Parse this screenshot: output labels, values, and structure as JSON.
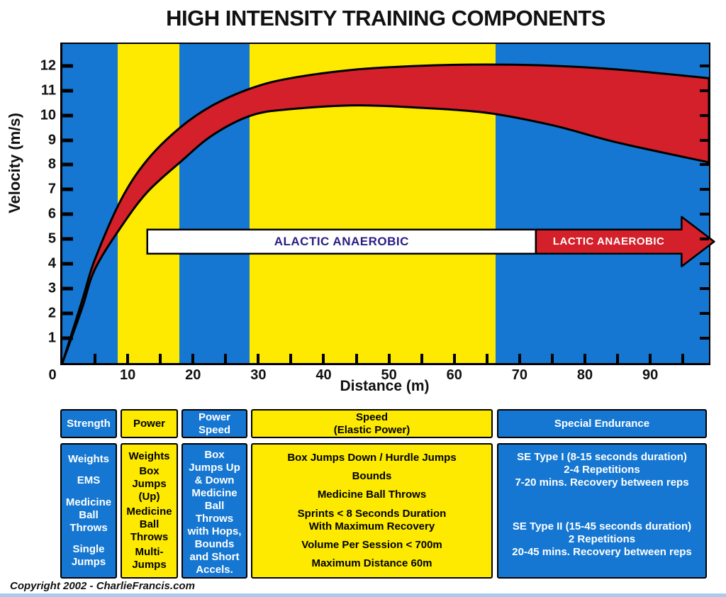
{
  "title": "HIGH INTENSITY TRAINING COMPONENTS",
  "footer": {
    "copyright": "Copyright 2002 - CharlieFrancis.com"
  },
  "colors": {
    "blue": "#1577d2",
    "yellow": "#fdea00",
    "red": "#d3202a",
    "navy_text": "#2c1c85",
    "white": "#ffffff",
    "black": "#000000",
    "footer_strip": "#a9cbec"
  },
  "chart_data": {
    "type": "area",
    "title": "HIGH INTENSITY TRAINING COMPONENTS",
    "xlabel": "Distance (m)",
    "ylabel": "Velocity (m/s)",
    "xlim": [
      0,
      99
    ],
    "ylim": [
      0,
      12.88
    ],
    "grid": false,
    "x_ticks_labeled": [
      0,
      10,
      20,
      30,
      40,
      50,
      60,
      70,
      80,
      90
    ],
    "x_ticks_minor_every": 5,
    "y_ticks": [
      1,
      2,
      3,
      4,
      5,
      6,
      7,
      8,
      9,
      10,
      11,
      12
    ],
    "zones": [
      {
        "name": "strength",
        "from": 0,
        "to": 8.5,
        "color": "blue"
      },
      {
        "name": "power",
        "from": 8.5,
        "to": 17.9,
        "color": "yellow"
      },
      {
        "name": "power-speed",
        "from": 17.9,
        "to": 28.7,
        "color": "blue"
      },
      {
        "name": "speed-elastic-power",
        "from": 28.7,
        "to": 66.3,
        "color": "yellow"
      },
      {
        "name": "special-endurance",
        "from": 66.3,
        "to": 99,
        "color": "blue"
      }
    ],
    "band": {
      "name": "velocity-envelope",
      "color": "red",
      "upper": [
        [
          0,
          0
        ],
        [
          3,
          2.5
        ],
        [
          5,
          4.2
        ],
        [
          9,
          6.6
        ],
        [
          13,
          8.2
        ],
        [
          18,
          9.5
        ],
        [
          23,
          10.4
        ],
        [
          29,
          11.1
        ],
        [
          35,
          11.5
        ],
        [
          45,
          11.85
        ],
        [
          55,
          12.0
        ],
        [
          65,
          12.05
        ],
        [
          75,
          12.0
        ],
        [
          85,
          11.85
        ],
        [
          99,
          11.5
        ]
      ],
      "lower": [
        [
          0,
          0
        ],
        [
          3,
          2.2
        ],
        [
          5,
          3.8
        ],
        [
          9,
          5.5
        ],
        [
          13,
          6.9
        ],
        [
          18,
          8.1
        ],
        [
          23,
          9.2
        ],
        [
          29,
          10.0
        ],
        [
          35,
          10.25
        ],
        [
          45,
          10.4
        ],
        [
          55,
          10.3
        ],
        [
          65,
          10.1
        ],
        [
          75,
          9.6
        ],
        [
          85,
          8.9
        ],
        [
          99,
          8.1
        ]
      ]
    },
    "annotations": [
      {
        "label": "ALACTIC ANAEROBIC",
        "style": "white-banner",
        "x_from": 13,
        "x_to": 72.5,
        "y": 4.9,
        "text_color": "navy_text",
        "font_size": 17
      },
      {
        "label": "LACTIC ANAEROBIC",
        "style": "red-arrow",
        "x_from": 72.5,
        "x_to": 99.8,
        "y": 4.9,
        "text_color": "white",
        "font_size": 15
      }
    ]
  },
  "table": {
    "columns": [
      {
        "header": "Strength",
        "color": "blue",
        "items": [
          "Weights",
          "EMS",
          "Medicine\nBall\nThrows",
          "Single\nJumps"
        ]
      },
      {
        "header": "Power",
        "color": "yellow",
        "items": [
          "Weights",
          "Box\nJumps\n(Up)",
          "Medicine\nBall\nThrows",
          "Multi-\nJumps"
        ]
      },
      {
        "header": "Power\nSpeed",
        "color": "blue",
        "items": [
          "Box\nJumps Up\n& Down",
          "Medicine\nBall\nThrows\nwith Hops,\nBounds\nand Short\nAccels."
        ]
      },
      {
        "header": "Speed\n(Elastic Power)",
        "color": "yellow",
        "items": [
          "Box Jumps Down / Hurdle Jumps",
          "Bounds",
          "Medicine Ball Throws",
          "Sprints < 8 Seconds Duration\nWith Maximum Recovery",
          "Volume Per Session < 700m",
          "Maximum Distance 60m"
        ]
      },
      {
        "header": "Special Endurance",
        "color": "blue",
        "items": [
          "SE Type I (8-15 seconds duration)\n2-4 Repetitions\n7-20 mins. Recovery between reps",
          "SE Type II (15-45 seconds duration)\n2 Repetitions\n20-45 mins. Recovery between reps"
        ]
      }
    ]
  }
}
